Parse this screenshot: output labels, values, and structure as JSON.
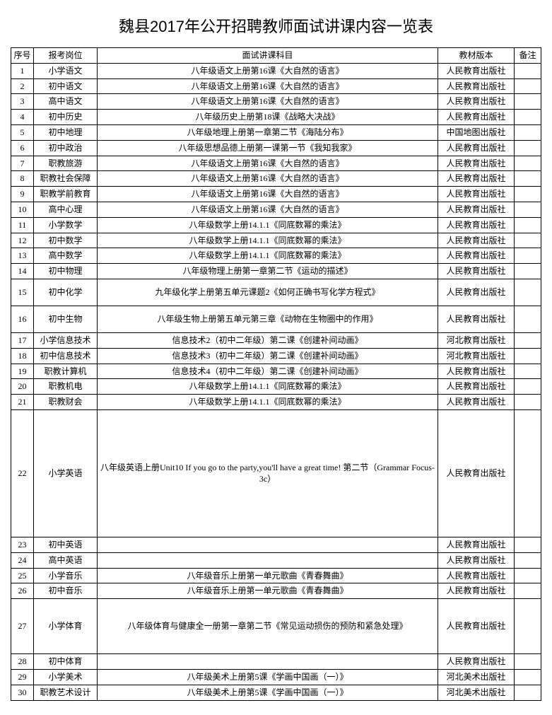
{
  "title": "魏县2017年公开招聘教师面试讲课内容一览表",
  "headers": {
    "seq": "序号",
    "position": "报考岗位",
    "subject": "面试讲课科目",
    "version": "教材版本",
    "remark": "备注"
  },
  "rows": [
    {
      "seq": "1",
      "position": "小学语文",
      "subject": "八年级语文上册第16课《大自然的语言》",
      "version": "人民教育出版社",
      "remark": "",
      "cls": ""
    },
    {
      "seq": "2",
      "position": "初中语文",
      "subject": "八年级语文上册第16课《大自然的语言》",
      "version": "人民教育出版社",
      "remark": "",
      "cls": ""
    },
    {
      "seq": "3",
      "position": "高中语文",
      "subject": "八年级语文上册第16课《大自然的语言》",
      "version": "人民教育出版社",
      "remark": "",
      "cls": ""
    },
    {
      "seq": "4",
      "position": "初中历史",
      "subject": "八年级历史上册第18课《战略大决战》",
      "version": "人民教育出版社",
      "remark": "",
      "cls": ""
    },
    {
      "seq": "5",
      "position": "初中地理",
      "subject": "八年级地理上册第一章第二节《海陆分布》",
      "version": "中国地图出版社",
      "remark": "",
      "cls": ""
    },
    {
      "seq": "6",
      "position": "初中政治",
      "subject": "八年级思想品德上册第一课第一节《我知我家》",
      "version": "人民教育出版社",
      "remark": "",
      "cls": ""
    },
    {
      "seq": "7",
      "position": "职教旅游",
      "subject": "八年级语文上册第16课《大自然的语言》",
      "version": "人民教育出版社",
      "remark": "",
      "cls": ""
    },
    {
      "seq": "8",
      "position": "职教社会保障",
      "subject": "八年级语文上册第16课《大自然的语言》",
      "version": "人民教育出版社",
      "remark": "",
      "cls": ""
    },
    {
      "seq": "9",
      "position": "职教学前教育",
      "subject": "八年级语文上册第16课《大自然的语言》",
      "version": "人民教育出版社",
      "remark": "",
      "cls": ""
    },
    {
      "seq": "10",
      "position": "高中心理",
      "subject": "八年级语文上册第16课《大自然的语言》",
      "version": "人民教育出版社",
      "remark": "",
      "cls": ""
    },
    {
      "seq": "11",
      "position": "小学数学",
      "subject": "八年级数学上册14.1.1《同底数幂的乘法》",
      "version": "人民教育出版社",
      "remark": "",
      "cls": ""
    },
    {
      "seq": "12",
      "position": "初中数学",
      "subject": "八年级数学上册14.1.1《同底数幂的乘法》",
      "version": "人民教育出版社",
      "remark": "",
      "cls": ""
    },
    {
      "seq": "13",
      "position": "高中数学",
      "subject": "八年级数学上册14.1.1《同底数幂的乘法》",
      "version": "人民教育出版社",
      "remark": "",
      "cls": ""
    },
    {
      "seq": "14",
      "position": "初中物理",
      "subject": "八年级物理上册第一章第二节《运动的描述》",
      "version": "人民教育出版社",
      "remark": "",
      "cls": ""
    },
    {
      "seq": "15",
      "position": "初中化学",
      "subject": "九年级化学上册第五单元课题2《如何正确书写化学方程式》",
      "version": "人民教育出版社",
      "remark": "",
      "cls": "sm-row"
    },
    {
      "seq": "16",
      "position": "初中生物",
      "subject": "八年级生物上册第五单元第三章《动物在生物圈中的作用》",
      "version": "人民教育出版社",
      "remark": "",
      "cls": "sm-row"
    },
    {
      "seq": "17",
      "position": "小学信息技术",
      "subject": "信息技术2（初中二年级）第二课《创建补间动画》",
      "version": "河北教育出版社",
      "remark": "",
      "cls": ""
    },
    {
      "seq": "18",
      "position": "初中信息技术",
      "subject": "信息技术3（初中二年级）第二课《创建补间动画》",
      "version": "河北教育出版社",
      "remark": "",
      "cls": ""
    },
    {
      "seq": "19",
      "position": "职教计算机",
      "subject": "信息技术4（初中二年级）第二课《创建补间动画》",
      "version": "人民教育出版社",
      "remark": "",
      "cls": ""
    },
    {
      "seq": "20",
      "position": "职教机电",
      "subject": "八年级数学上册14.1.1《同底数幂的乘法》",
      "version": "人民教育出版社",
      "remark": "",
      "cls": ""
    },
    {
      "seq": "21",
      "position": "职教财会",
      "subject": "八年级数学上册14.1.1《同底数幂的乘法》",
      "version": "人民教育出版社",
      "remark": "",
      "cls": ""
    },
    {
      "seq": "22",
      "position": "小学英语",
      "subject": "八年级英语上册Unit10 If you go to the party,you'll have a great time! 第二节（Grammar Focus-3c）",
      "version": "人民教育出版社",
      "remark": "",
      "cls": "tall-row"
    },
    {
      "seq": "23",
      "position": "初中英语",
      "subject": "",
      "version": "人民教育出版社",
      "remark": "",
      "cls": ""
    },
    {
      "seq": "24",
      "position": "高中英语",
      "subject": "",
      "version": "人民教育出版社",
      "remark": "",
      "cls": ""
    },
    {
      "seq": "25",
      "position": "小学音乐",
      "subject": "八年级音乐上册第一单元歌曲《青春舞曲》",
      "version": "人民教育出版社",
      "remark": "",
      "cls": ""
    },
    {
      "seq": "26",
      "position": "初中音乐",
      "subject": "八年级音乐上册第一单元歌曲《青春舞曲》",
      "version": "人民教育出版社",
      "remark": "",
      "cls": ""
    },
    {
      "seq": "27",
      "position": "小学体育",
      "subject": "八年级体育与健康全一册第一章第二节《常见运动损伤的预防和紧急处理》",
      "version": "人民教育出版社",
      "remark": "",
      "cls": "med-row"
    },
    {
      "seq": "28",
      "position": "初中体育",
      "subject": "",
      "version": "人民教育出版社",
      "remark": "",
      "cls": ""
    },
    {
      "seq": "29",
      "position": "小学美术",
      "subject": "八年级美术上册第5课《学画中国画（一）》",
      "version": "河北美术出版社",
      "remark": "",
      "cls": ""
    },
    {
      "seq": "30",
      "position": "职教艺术设计",
      "subject": "八年级美术上册第5课《学画中国画（一）》",
      "version": "河北美术出版社",
      "remark": "",
      "cls": ""
    }
  ],
  "columns": {
    "seq_width": 32,
    "pos_width": 90,
    "ver_width": 108,
    "rem_width": 38
  },
  "styles": {
    "title_fontsize": 22,
    "cell_fontsize": 12,
    "border_color": "#000000",
    "background_color": "#ffffff"
  }
}
